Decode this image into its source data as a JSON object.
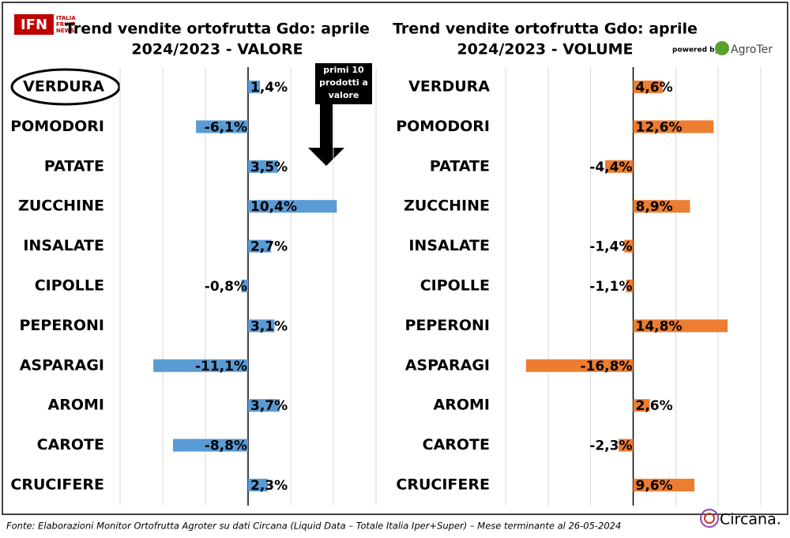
{
  "chart_data": [
    {
      "type": "hbar",
      "title": "Trend vendite ortofrutta Gdo: aprile",
      "subtitle": "2024/2023 - VALORE",
      "categories": [
        "VERDURA",
        "POMODORI",
        "PATATE",
        "ZUCCHINE",
        "INSALATE",
        "CIPOLLE",
        "PEPERONI",
        "ASPARAGI",
        "AROMI",
        "CAROTE",
        "CRUCIFERE"
      ],
      "values": [
        1.4,
        -6.1,
        3.5,
        10.4,
        2.7,
        -0.8,
        3.1,
        -11.1,
        3.7,
        -8.8,
        2.3
      ],
      "value_labels": [
        "1,4%",
        "-6,1%",
        "3,5%",
        "10,4%",
        "2,7%",
        "-0,8%",
        "3,1%",
        "-11,1%",
        "3,7%",
        "-8,8%",
        "2,3%"
      ],
      "color": "#5b9bd5",
      "xlim": [
        -15,
        15
      ],
      "xticks": [
        -15,
        -10,
        -5,
        0,
        5,
        10,
        15
      ],
      "grid": true,
      "tick_labels": false,
      "annotation": "primi 10 prodotti a valore"
    },
    {
      "type": "hbar",
      "title": "Trend vendite ortofrutta Gdo: aprile",
      "subtitle": "2024/2023 - VOLUME",
      "categories": [
        "VERDURA",
        "POMODORI",
        "PATATE",
        "ZUCCHINE",
        "INSALATE",
        "CIPOLLE",
        "PEPERONI",
        "ASPARAGI",
        "AROMI",
        "CAROTE",
        "CRUCIFERE"
      ],
      "values": [
        4.6,
        12.6,
        -4.4,
        8.9,
        -1.4,
        -1.1,
        14.8,
        -16.8,
        2.6,
        -2.3,
        9.6
      ],
      "value_labels": [
        "4,6%",
        "12,6%",
        "-4,4%",
        "8,9%",
        "-1,4%",
        "-1,1%",
        "14,8%",
        "-16,8%",
        "2,6%",
        "-2,3%",
        "9,6%"
      ],
      "color": "#ed7d31",
      "xlim": [
        -20,
        20
      ],
      "xticks": [
        -20,
        -13.3,
        -6.7,
        0,
        6.7,
        13.3,
        20
      ],
      "grid": true,
      "tick_labels": false
    }
  ],
  "logo_left": {
    "mark": "IFN",
    "lines": [
      "ITALIA",
      "FRUIT",
      "NEWS"
    ]
  },
  "powered_by": "powered by",
  "logo_right": "AgroTer",
  "source": "Fonte: Elaborazioni Monitor Ortofrutta Agroter su dati Circana (Liquid Data – Totale Italia Iper+Super) – Mese terminante al 26-05-2024",
  "logo_footer": "Circana."
}
